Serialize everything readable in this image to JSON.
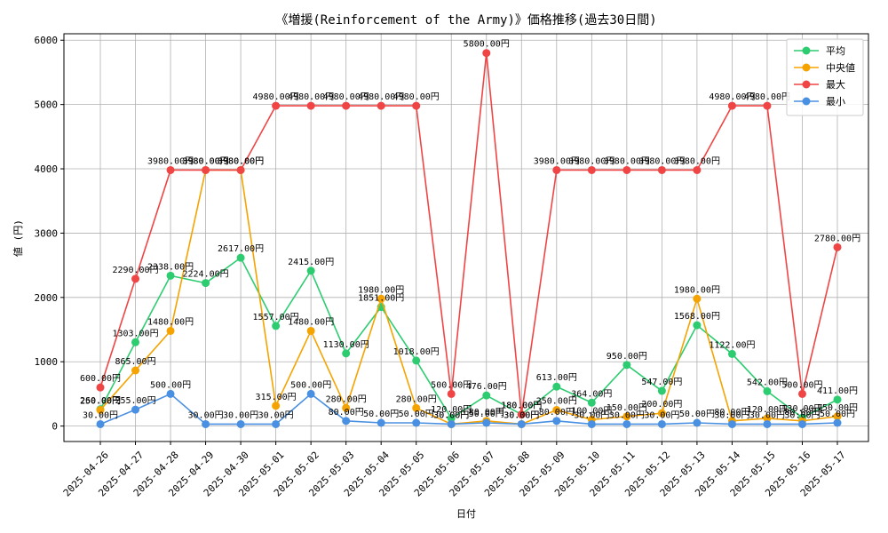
{
  "chart_data": {
    "type": "line",
    "title": "《増援(Reinforcement of the Army)》価格推移(過去30日間)",
    "xlabel": "日付",
    "ylabel": "値 (円)",
    "ylim": [
      -240,
      6100
    ],
    "yticks": [
      0,
      1000,
      2000,
      3000,
      4000,
      5000,
      6000
    ],
    "grid": true,
    "legend_position": "top-right",
    "label_suffix": "円",
    "categories": [
      "2025-04-26",
      "2025-04-27",
      "2025-04-28",
      "2025-04-29",
      "2025-04-30",
      "2025-05-01",
      "2025-05-02",
      "2025-05-03",
      "2025-05-04",
      "2025-05-05",
      "2025-05-06",
      "2025-05-07",
      "2025-05-08",
      "2025-05-09",
      "2025-05-10",
      "2025-05-11",
      "2025-05-12",
      "2025-05-13",
      "2025-05-14",
      "2025-05-15",
      "2025-05-16",
      "2025-05-17"
    ],
    "series": [
      {
        "name": "平均",
        "color": "#2ecc71",
        "values": [
          260,
          1303,
          2338,
          2224,
          2617,
          1557,
          2415,
          1130,
          1851,
          1018,
          120,
          476,
          180,
          613,
          364,
          950,
          547,
          1568,
          1122,
          542,
          130,
          411
        ]
      },
      {
        "name": "中央値",
        "color": "#f5a300",
        "values": [
          250,
          865,
          1480,
          3980,
          3980,
          315,
          1480,
          280,
          1980,
          280,
          30,
          80,
          30,
          250,
          100,
          150,
          200,
          1980,
          80,
          120,
          80,
          150
        ]
      },
      {
        "name": "最大",
        "color": "#ef4545",
        "values": [
          600,
          2290,
          3980,
          3980,
          3980,
          4980,
          4980,
          4980,
          4980,
          4980,
          500,
          5800,
          180,
          3980,
          3980,
          3980,
          3980,
          3980,
          4980,
          4980,
          500,
          2780
        ]
      },
      {
        "name": "最小",
        "color": "#4a90e2",
        "values": [
          30,
          255,
          500,
          30,
          30,
          30,
          500,
          80,
          50,
          50,
          30,
          50,
          30,
          80,
          30,
          30,
          30,
          50,
          30,
          30,
          30,
          50
        ]
      }
    ]
  }
}
